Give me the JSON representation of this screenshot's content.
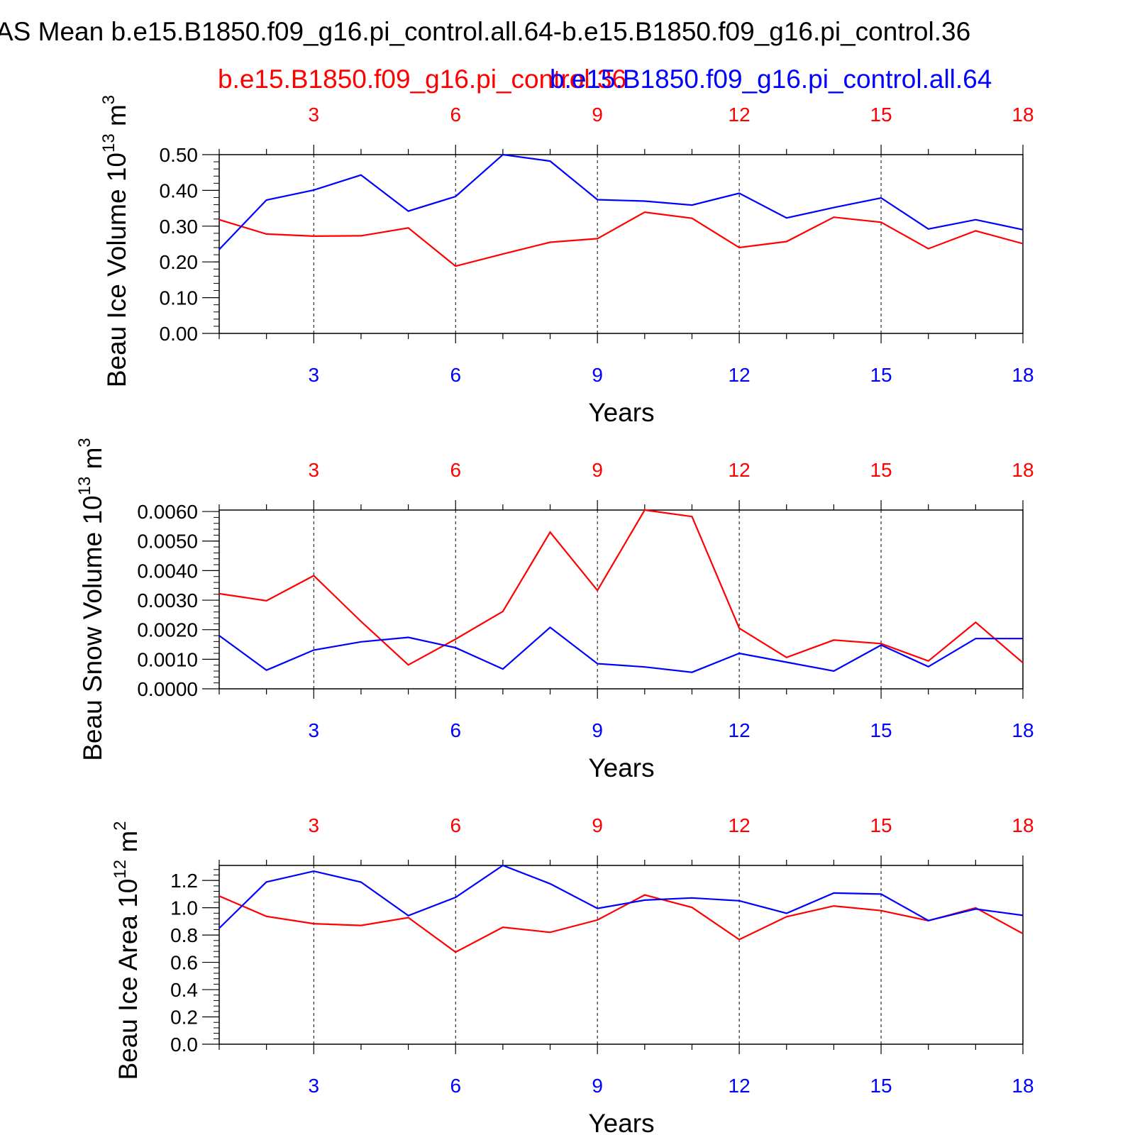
{
  "title": "AS Mean b.e15.B1850.f09_g16.pi_control.all.64-b.e15.B1850.f09_g16.pi_control.36",
  "legend": {
    "red_label": "b.e15.B1850.f09_g16.pi_control.36",
    "blue_label": "b.e15.B1850.f09_g16.pi_control.all.64"
  },
  "colors": {
    "red": "#ff0000",
    "blue": "#0000ff",
    "axis": "#000000"
  },
  "chart_data": [
    {
      "type": "line",
      "ylabel_main": "Beau Ice Volume 10",
      "ylabel_exp": "13",
      "ylabel_unit": "m",
      "ylabel_unit_exp": "3",
      "xlabel": "Years",
      "x": [
        1,
        2,
        3,
        4,
        5,
        6,
        7,
        8,
        9,
        10,
        11,
        12,
        13,
        14,
        15,
        16,
        17,
        18
      ],
      "xlim": [
        1,
        18
      ],
      "ylim": [
        0,
        0.5
      ],
      "xticks": [
        3,
        6,
        9,
        12,
        15,
        18
      ],
      "yticks": [
        "0.00",
        "0.10",
        "0.20",
        "0.30",
        "0.40",
        "0.50"
      ],
      "ytick_values": [
        0,
        0.1,
        0.2,
        0.3,
        0.4,
        0.5
      ],
      "series": [
        {
          "name": "b.e15.B1850.f09_g16.pi_control.36",
          "color": "red",
          "values": [
            0.318,
            0.278,
            0.272,
            0.273,
            0.295,
            0.188,
            0.222,
            0.255,
            0.265,
            0.339,
            0.322,
            0.24,
            0.257,
            0.325,
            0.311,
            0.237,
            0.287,
            0.251
          ]
        },
        {
          "name": "b.e15.B1850.f09_g16.pi_control.all.64",
          "color": "blue",
          "values": [
            0.235,
            0.373,
            0.401,
            0.443,
            0.342,
            0.383,
            0.5,
            0.482,
            0.374,
            0.37,
            0.359,
            0.392,
            0.323,
            0.352,
            0.379,
            0.292,
            0.318,
            0.29
          ]
        }
      ]
    },
    {
      "type": "line",
      "ylabel_main": "Beau Snow Volume 10",
      "ylabel_exp": "13",
      "ylabel_unit": "m",
      "ylabel_unit_exp": "3",
      "xlabel": "Years",
      "x": [
        1,
        2,
        3,
        4,
        5,
        6,
        7,
        8,
        9,
        10,
        11,
        12,
        13,
        14,
        15,
        16,
        17,
        18
      ],
      "xlim": [
        1,
        18
      ],
      "ylim": [
        0,
        0.00605
      ],
      "xticks": [
        3,
        6,
        9,
        12,
        15,
        18
      ],
      "yticks": [
        "0.0000",
        "0.0010",
        "0.0020",
        "0.0030",
        "0.0040",
        "0.0050",
        "0.0060"
      ],
      "ytick_values": [
        0,
        0.001,
        0.002,
        0.003,
        0.004,
        0.005,
        0.006
      ],
      "series": [
        {
          "name": "b.e15.B1850.f09_g16.pi_control.36",
          "color": "red",
          "values": [
            0.00322,
            0.00298,
            0.00383,
            0.00228,
            0.00081,
            0.00168,
            0.00262,
            0.0053,
            0.00333,
            0.00605,
            0.00583,
            0.00205,
            0.00106,
            0.00165,
            0.00153,
            0.00094,
            0.00225,
            0.00088
          ]
        },
        {
          "name": "b.e15.B1850.f09_g16.pi_control.all.64",
          "color": "blue",
          "values": [
            0.0018,
            0.00063,
            0.00131,
            0.00159,
            0.00174,
            0.00139,
            0.00067,
            0.00208,
            0.00085,
            0.00074,
            0.00056,
            0.0012,
            0.0009,
            0.0006,
            0.00148,
            0.00075,
            0.0017,
            0.0017
          ]
        }
      ]
    },
    {
      "type": "line",
      "ylabel_main": "Beau Ice Area 10",
      "ylabel_exp": "12",
      "ylabel_unit": "m",
      "ylabel_unit_exp": "2",
      "xlabel": "Years",
      "x": [
        1,
        2,
        3,
        4,
        5,
        6,
        7,
        8,
        9,
        10,
        11,
        12,
        13,
        14,
        15,
        16,
        17,
        18
      ],
      "xlim": [
        1,
        18
      ],
      "ylim": [
        0,
        1.31
      ],
      "xticks": [
        3,
        6,
        9,
        12,
        15,
        18
      ],
      "yticks": [
        "0.0",
        "0.2",
        "0.4",
        "0.6",
        "0.8",
        "1.0",
        "1.2"
      ],
      "ytick_values": [
        0,
        0.2,
        0.4,
        0.6,
        0.8,
        1.0,
        1.2
      ],
      "series": [
        {
          "name": "b.e15.B1850.f09_g16.pi_control.36",
          "color": "red",
          "values": [
            1.086,
            0.937,
            0.883,
            0.87,
            0.928,
            0.675,
            0.857,
            0.82,
            0.91,
            1.094,
            1.002,
            0.767,
            0.934,
            1.013,
            0.979,
            0.905,
            0.999,
            0.81
          ]
        },
        {
          "name": "b.e15.B1850.f09_g16.pi_control.all.64",
          "color": "blue",
          "values": [
            0.85,
            1.189,
            1.268,
            1.188,
            0.942,
            1.076,
            1.31,
            1.176,
            0.995,
            1.056,
            1.072,
            1.051,
            0.959,
            1.108,
            1.1,
            0.906,
            0.991,
            0.944
          ]
        }
      ]
    }
  ]
}
